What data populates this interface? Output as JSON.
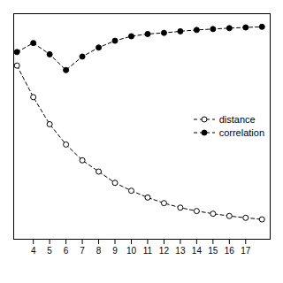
{
  "chart_data": {
    "type": "line",
    "x": [
      3,
      4,
      5,
      6,
      7,
      8,
      9,
      10,
      11,
      12,
      13,
      14,
      15,
      16,
      17,
      18
    ],
    "series": [
      {
        "name": "distance",
        "color": "#000000",
        "marker": "open",
        "line_style": "dashed",
        "values": [
          0.82,
          0.68,
          0.56,
          0.47,
          0.4,
          0.35,
          0.3,
          0.265,
          0.235,
          0.21,
          0.19,
          0.175,
          0.163,
          0.153,
          0.145,
          0.138
        ]
      },
      {
        "name": "correlation",
        "color": "#000000",
        "marker": "filled",
        "line_style": "dashed",
        "values": [
          0.88,
          0.92,
          0.87,
          0.8,
          0.86,
          0.9,
          0.93,
          0.95,
          0.96,
          0.965,
          0.972,
          0.978,
          0.982,
          0.986,
          0.989,
          0.992
        ]
      }
    ],
    "xlim": [
      2.8,
      18.5
    ],
    "xticks": [
      4,
      5,
      6,
      7,
      8,
      9,
      10,
      11,
      12,
      13,
      14,
      15,
      16,
      17
    ],
    "ylim": [
      0.05,
      1.05
    ],
    "tick_labels": "x",
    "grid": false,
    "legend": "right"
  }
}
